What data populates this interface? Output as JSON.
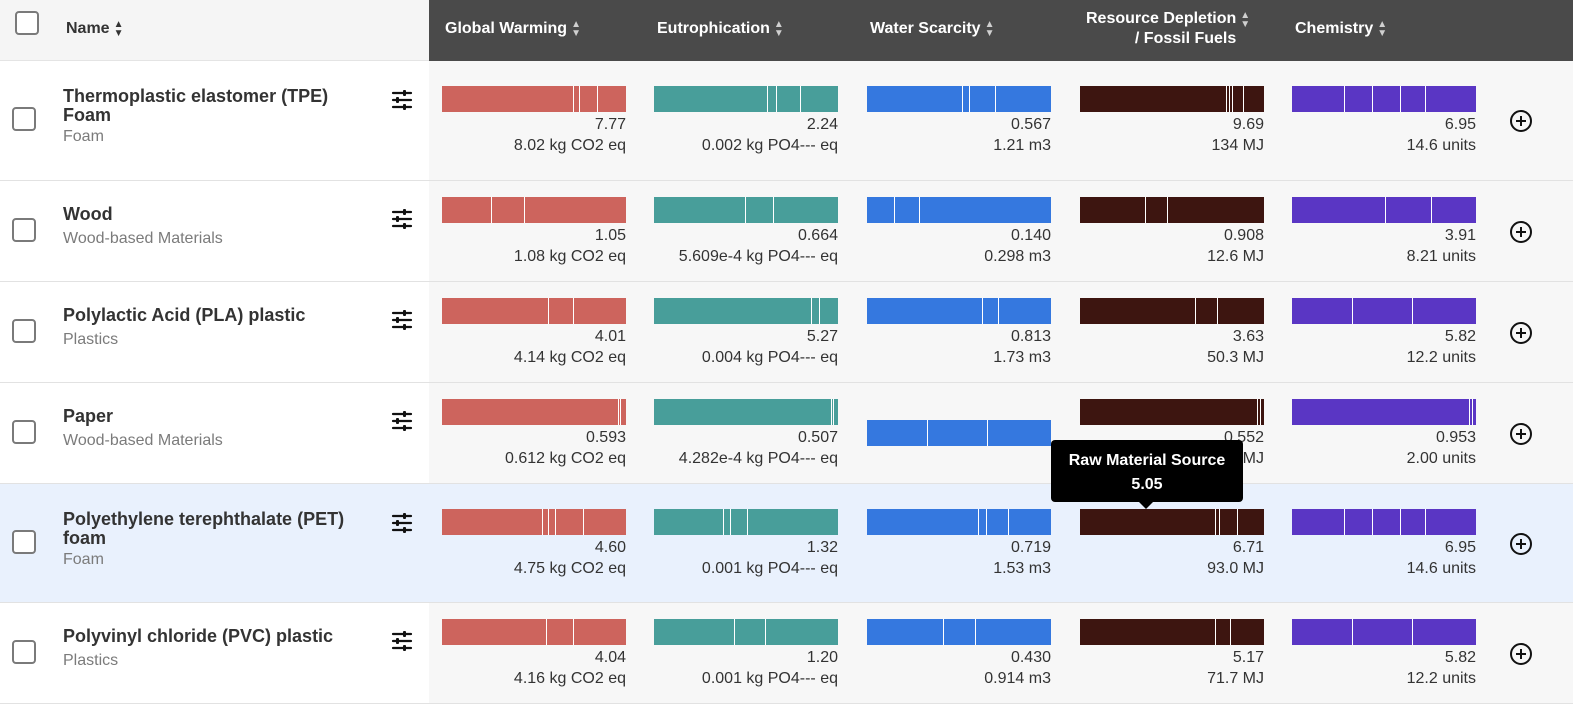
{
  "header": {
    "name": "Name",
    "columns": [
      {
        "line1": "Global Warming",
        "line2": ""
      },
      {
        "line1": "Eutrophication",
        "line2": ""
      },
      {
        "line1": "Water Scarcity",
        "line2": ""
      },
      {
        "line1": "Resource Depletion",
        "line2": "/ Fossil Fuels"
      },
      {
        "line1": "Chemistry",
        "line2": ""
      }
    ]
  },
  "colors": {
    "global_warming": "#cd645d",
    "eutrophication": "#489e9a",
    "water_scarcity": "#3578df",
    "resource_depletion": "#3d1510",
    "chemistry": "#5a36c4",
    "header_dark": "#4a4a4a",
    "row_highlight": "#e9f1fd"
  },
  "icons": {
    "filter": "sliders-icon",
    "add": "plus-circle-icon",
    "sort": "sort-icon"
  },
  "rows": [
    {
      "name_line1": "Thermoplastic elastomer (TPE)",
      "name_line2": "Foam",
      "category": "Foam",
      "highlighted": false,
      "metrics": [
        {
          "score": "7.77",
          "unit": "8.02 kg CO2 eq",
          "fill": 1.0,
          "segments": [
            0.72,
            0.03,
            0.1,
            0.15
          ]
        },
        {
          "score": "2.24",
          "unit": "0.002 kg PO4--- eq",
          "fill": 1.0,
          "segments": [
            0.62,
            0.05,
            0.13,
            0.2
          ]
        },
        {
          "score": "0.567",
          "unit": "1.21 m3",
          "fill": 1.0,
          "segments": [
            0.52,
            0.04,
            0.14,
            0.3
          ]
        },
        {
          "score": "9.69",
          "unit": "134 MJ",
          "fill": 1.0,
          "segments": [
            0.8,
            0.015,
            0.015,
            0.06,
            0.11
          ]
        },
        {
          "score": "6.95",
          "unit": "14.6 units",
          "fill": 1.0,
          "segments": [
            0.29,
            0.15,
            0.15,
            0.14,
            0.27
          ]
        }
      ]
    },
    {
      "name_line1": "Wood",
      "name_line2": "",
      "category": "Wood-based Materials",
      "highlighted": false,
      "metrics": [
        {
          "score": "1.05",
          "unit": "1.08 kg CO2 eq",
          "fill": 1.0,
          "segments": [
            0.27,
            0.18,
            0.55
          ]
        },
        {
          "score": "0.664",
          "unit": "5.609e-4 kg PO4--- eq",
          "fill": 1.0,
          "segments": [
            0.5,
            0.15,
            0.35
          ]
        },
        {
          "score": "0.140",
          "unit": "0.298 m3",
          "fill": 1.0,
          "segments": [
            0.15,
            0.14,
            0.71
          ]
        },
        {
          "score": "0.908",
          "unit": "12.6 MJ",
          "fill": 1.0,
          "segments": [
            0.36,
            0.12,
            0.52
          ]
        },
        {
          "score": "3.91",
          "unit": "8.21 units",
          "fill": 1.0,
          "segments": [
            0.51,
            0.25,
            0.24
          ]
        }
      ]
    },
    {
      "name_line1": "Polylactic Acid (PLA) plastic",
      "name_line2": "",
      "category": "Plastics",
      "highlighted": false,
      "metrics": [
        {
          "score": "4.01",
          "unit": "4.14 kg CO2 eq",
          "fill": 1.0,
          "segments": [
            0.58,
            0.14,
            0.28
          ]
        },
        {
          "score": "5.27",
          "unit": "0.004 kg PO4--- eq",
          "fill": 1.0,
          "segments": [
            0.86,
            0.04,
            0.1
          ]
        },
        {
          "score": "0.813",
          "unit": "1.73 m3",
          "fill": 1.0,
          "segments": [
            0.63,
            0.09,
            0.28
          ]
        },
        {
          "score": "3.63",
          "unit": "50.3 MJ",
          "fill": 1.0,
          "segments": [
            0.63,
            0.12,
            0.25
          ]
        },
        {
          "score": "5.82",
          "unit": "12.2 units",
          "fill": 1.0,
          "segments": [
            0.33,
            0.33,
            0.34
          ]
        }
      ]
    },
    {
      "name_line1": "Paper",
      "name_line2": "",
      "category": "Wood-based Materials",
      "highlighted": false,
      "metrics": [
        {
          "score": "0.593",
          "unit": "0.612 kg CO2 eq",
          "fill": 1.0,
          "segments": [
            0.96,
            0.015,
            0.025
          ]
        },
        {
          "score": "0.507",
          "unit": "4.282e-4 kg PO4--- eq",
          "fill": 1.0,
          "segments": [
            0.97,
            0.01,
            0.02
          ]
        },
        {
          "score": "",
          "unit": "",
          "fill": 1.0,
          "segments": [
            0.33,
            0.33,
            0.34
          ]
        },
        {
          "score": "0.552",
          "unit": "7.66 MJ",
          "fill": 1.0,
          "segments": [
            0.97,
            0.015,
            0.015
          ]
        },
        {
          "score": "0.953",
          "unit": "2.00 units",
          "fill": 1.0,
          "segments": [
            0.97,
            0.015,
            0.015
          ]
        }
      ]
    },
    {
      "name_line1": "Polyethylene terephthalate (PET)",
      "name_line2": "foam",
      "category": "Foam",
      "highlighted": true,
      "metrics": [
        {
          "score": "4.60",
          "unit": "4.75 kg CO2 eq",
          "fill": 1.0,
          "segments": [
            0.55,
            0.03,
            0.04,
            0.15,
            0.23
          ]
        },
        {
          "score": "1.32",
          "unit": "0.001 kg PO4--- eq",
          "fill": 1.0,
          "segments": [
            0.38,
            0.04,
            0.09,
            0.49
          ]
        },
        {
          "score": "0.719",
          "unit": "1.53 m3",
          "fill": 1.0,
          "segments": [
            0.61,
            0.04,
            0.12,
            0.23
          ]
        },
        {
          "score": "6.71",
          "unit": "93.0 MJ",
          "fill": 1.0,
          "segments": [
            0.74,
            0.02,
            0.1,
            0.14
          ]
        },
        {
          "score": "6.95",
          "unit": "14.6 units",
          "fill": 1.0,
          "segments": [
            0.29,
            0.15,
            0.15,
            0.14,
            0.27
          ]
        }
      ]
    },
    {
      "name_line1": "Polyvinyl chloride (PVC) plastic",
      "name_line2": "",
      "category": "Plastics",
      "highlighted": false,
      "metrics": [
        {
          "score": "4.04",
          "unit": "4.16 kg CO2 eq",
          "fill": 1.0,
          "segments": [
            0.57,
            0.15,
            0.28
          ]
        },
        {
          "score": "1.20",
          "unit": "0.001 kg PO4--- eq",
          "fill": 1.0,
          "segments": [
            0.44,
            0.17,
            0.39
          ]
        },
        {
          "score": "0.430",
          "unit": "0.914 m3",
          "fill": 1.0,
          "segments": [
            0.42,
            0.17,
            0.41
          ]
        },
        {
          "score": "5.17",
          "unit": "71.7 MJ",
          "fill": 1.0,
          "segments": [
            0.74,
            0.08,
            0.18
          ]
        },
        {
          "score": "5.82",
          "unit": "12.2 units",
          "fill": 1.0,
          "segments": [
            0.33,
            0.33,
            0.34
          ]
        }
      ]
    }
  ],
  "tooltip": {
    "title": "Raw Material Source",
    "value": "5.05"
  }
}
